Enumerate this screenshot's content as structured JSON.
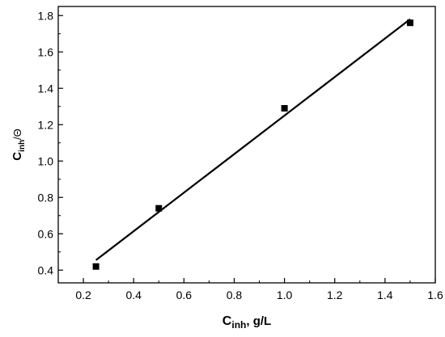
{
  "chart_data": {
    "type": "scatter",
    "title": "",
    "xlabel": {
      "main": "C",
      "sub": "inh",
      "suffix": ", g/L"
    },
    "ylabel": {
      "main": "C",
      "sub": "inh",
      "suffix": "/Θ"
    },
    "xlim": [
      0.1,
      1.6
    ],
    "ylim": [
      0.33,
      1.85
    ],
    "x_ticks": [
      0.2,
      0.4,
      0.6,
      0.8,
      1.0,
      1.2,
      1.4,
      1.6
    ],
    "x_tick_labels": [
      "0.2",
      "0.4",
      "0.6",
      "0.8",
      "1.0",
      "1.2",
      "1.4",
      "1.6"
    ],
    "y_ticks": [
      0.4,
      0.6,
      0.8,
      1.0,
      1.2,
      1.4,
      1.6,
      1.8
    ],
    "y_tick_labels": [
      "0.4",
      "0.6",
      "0.8",
      "1.0",
      "1.2",
      "1.4",
      "1.6",
      "1.8"
    ],
    "grid": false,
    "series": [
      {
        "kind": "points",
        "marker": "square",
        "x": [
          0.25,
          0.5,
          1.0,
          1.5
        ],
        "y": [
          0.42,
          0.74,
          1.29,
          1.76
        ]
      },
      {
        "kind": "fit-line",
        "x": [
          0.25,
          1.5
        ],
        "y": [
          0.455,
          1.78
        ]
      }
    ],
    "colors": {
      "marker": "#000000",
      "line": "#000000",
      "axis": "#000000"
    }
  }
}
